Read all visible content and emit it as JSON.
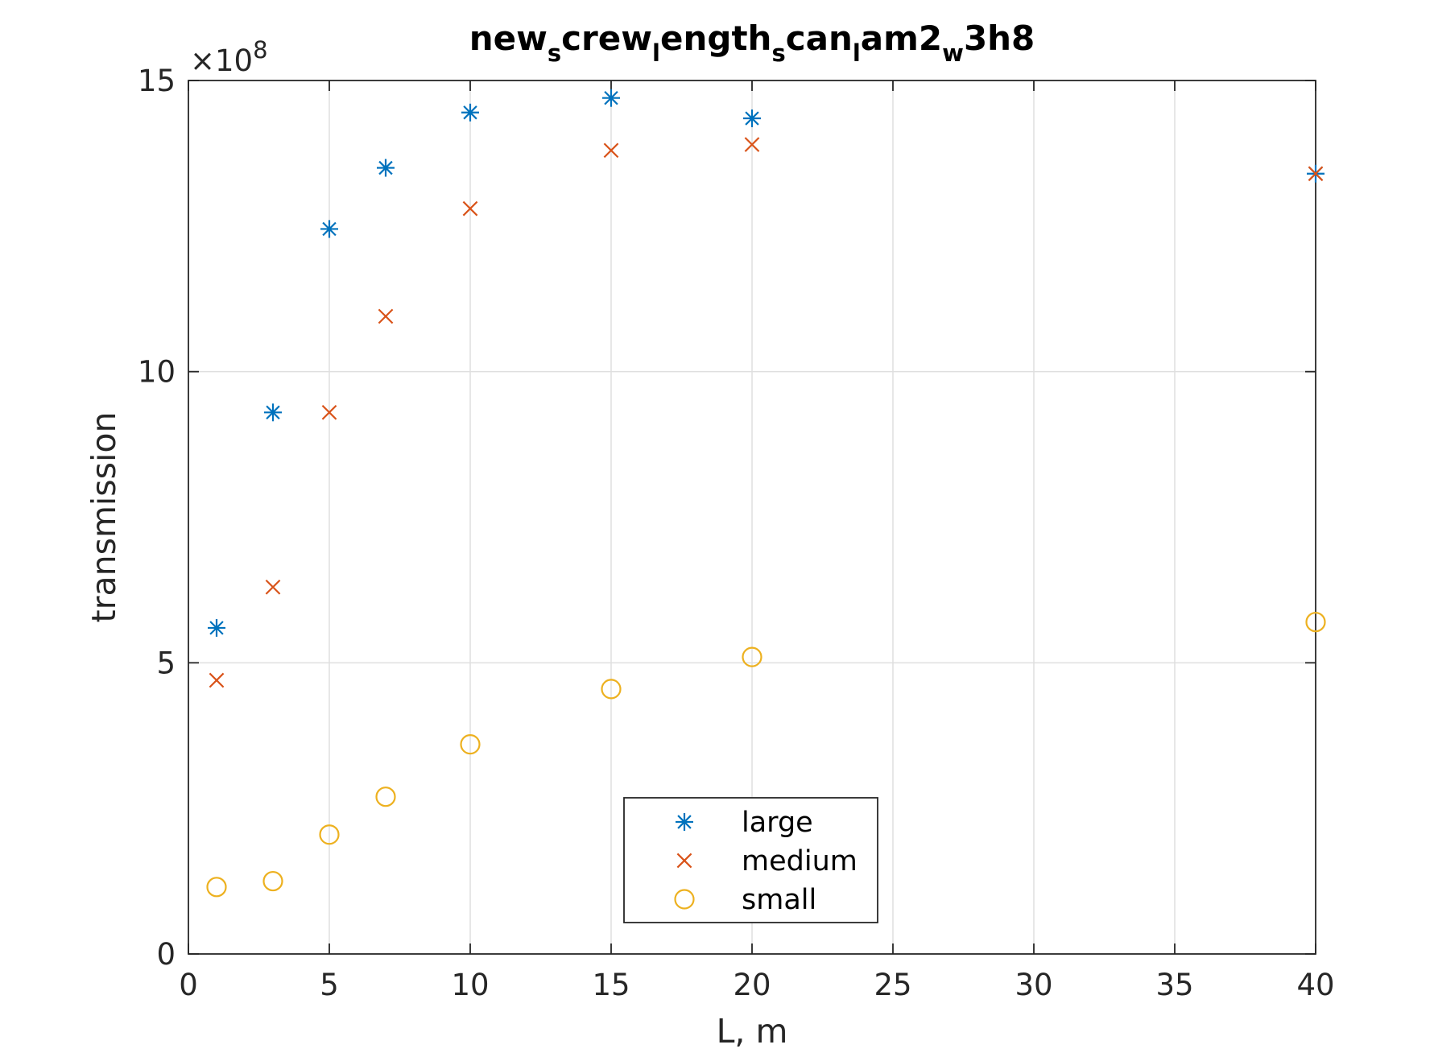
{
  "chart_data": {
    "type": "scatter",
    "title_segments": [
      {
        "text": "new",
        "sub": false
      },
      {
        "text": "s",
        "sub": true
      },
      {
        "text": "crew",
        "sub": false
      },
      {
        "text": "l",
        "sub": true
      },
      {
        "text": "ength",
        "sub": false
      },
      {
        "text": "s",
        "sub": true
      },
      {
        "text": "can",
        "sub": false
      },
      {
        "text": "l",
        "sub": true
      },
      {
        "text": "am2",
        "sub": false
      },
      {
        "text": "w",
        "sub": true
      },
      {
        "text": "3h8",
        "sub": false
      }
    ],
    "xlabel": "L, m",
    "ylabel": "transmission",
    "y_exponent_label": "×10",
    "y_exponent_power": "8",
    "xlim": [
      0,
      40
    ],
    "ylim": [
      0,
      15
    ],
    "x_ticks": [
      0,
      5,
      10,
      15,
      20,
      25,
      30,
      35,
      40
    ],
    "y_ticks": [
      0,
      5,
      10,
      15
    ],
    "x_tick_labels": [
      "0",
      "5",
      "10",
      "15",
      "20",
      "25",
      "30",
      "35",
      "40"
    ],
    "y_tick_labels": [
      "0",
      "5",
      "10",
      "15"
    ],
    "grid": true,
    "legend_position": "bottom-center",
    "series": [
      {
        "name": "large",
        "marker": "asterisk",
        "color": "#0072BD",
        "x": [
          1,
          3,
          5,
          7,
          10,
          15,
          20,
          40
        ],
        "y": [
          5.6,
          9.3,
          12.45,
          13.5,
          14.45,
          14.7,
          14.35,
          13.4
        ]
      },
      {
        "name": "medium",
        "marker": "x",
        "color": "#D95319",
        "x": [
          1,
          3,
          5,
          7,
          10,
          15,
          20,
          40
        ],
        "y": [
          4.7,
          6.3,
          9.3,
          10.95,
          12.8,
          13.8,
          13.9,
          13.4
        ]
      },
      {
        "name": "small",
        "marker": "circle",
        "color": "#EDB120",
        "x": [
          1,
          3,
          5,
          7,
          10,
          15,
          20,
          40
        ],
        "y": [
          1.15,
          1.25,
          2.05,
          2.7,
          3.6,
          4.55,
          5.1,
          5.7
        ]
      }
    ]
  }
}
